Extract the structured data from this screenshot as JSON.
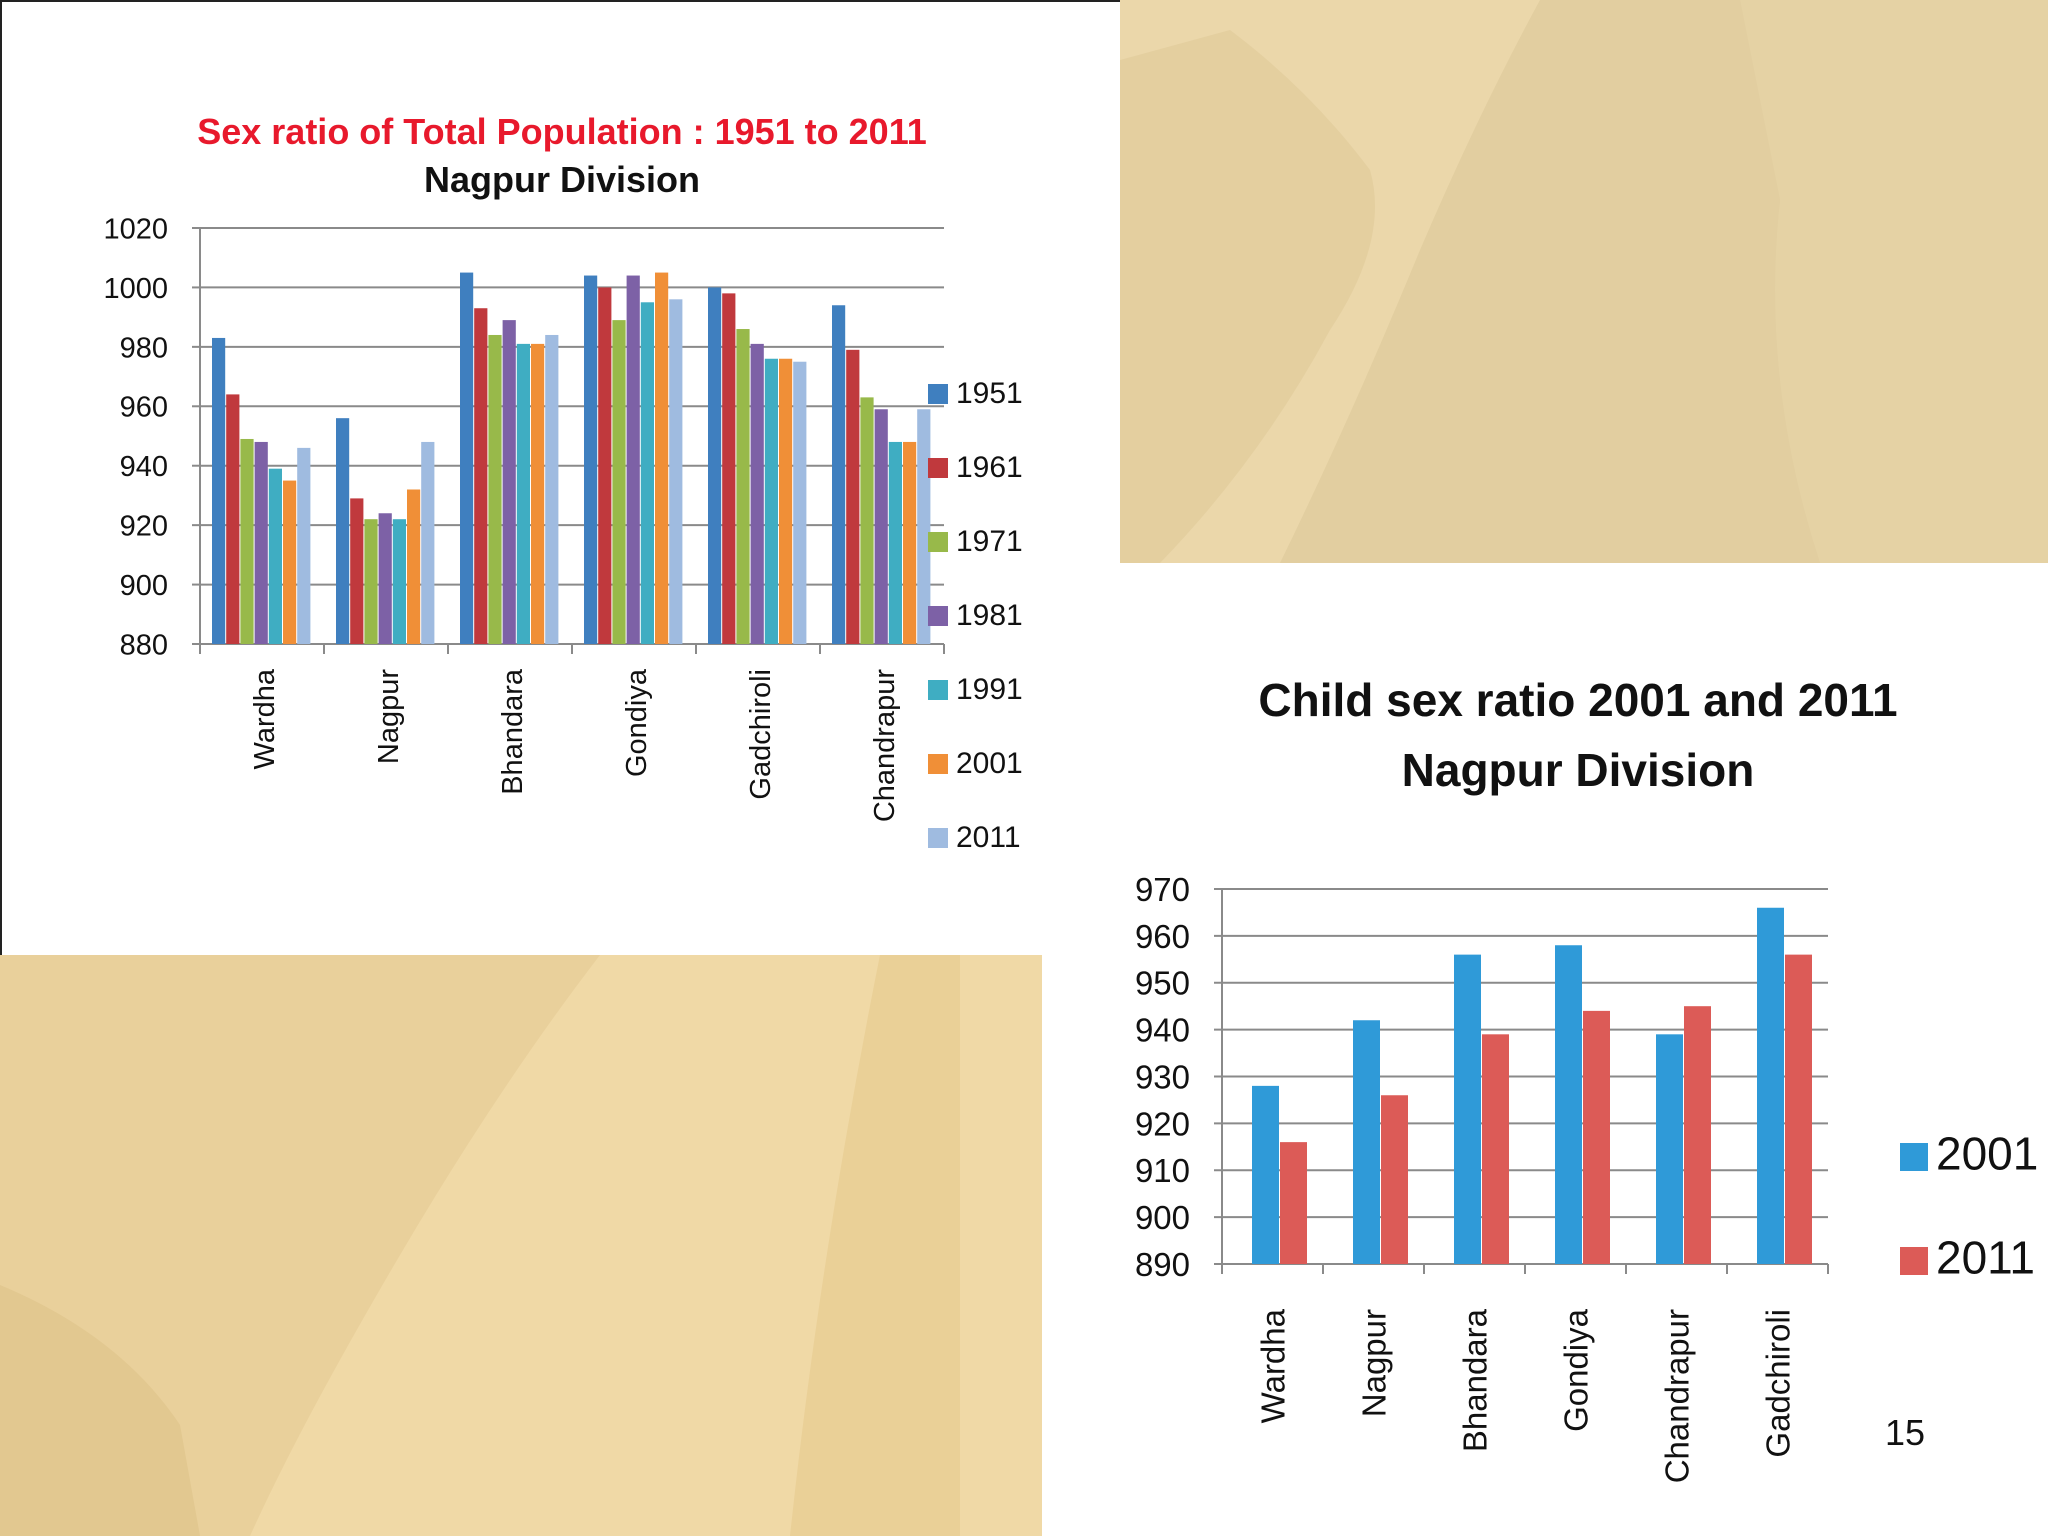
{
  "colors": {
    "deco_top_right": "#e2cea0",
    "deco_bottom_left": "#f0d9a6"
  },
  "chart_data": [
    {
      "type": "bar",
      "title": "Sex ratio of Total Population :  1951 to 2011",
      "subtitle": "Nagpur Division",
      "title_color": "#e8192c",
      "categories": [
        "Wardha",
        "Nagpur",
        "Bhandara",
        "Gondiya",
        "Gadchiroli",
        "Chandrapur"
      ],
      "series": [
        {
          "name": "1951",
          "color": "#3f7fbf",
          "values": [
            983,
            956,
            1005,
            1004,
            1000,
            994
          ]
        },
        {
          "name": "1961",
          "color": "#c0393d",
          "values": [
            964,
            929,
            993,
            1000,
            998,
            979
          ]
        },
        {
          "name": "1971",
          "color": "#98b94a",
          "values": [
            949,
            922,
            984,
            989,
            986,
            963
          ]
        },
        {
          "name": "1981",
          "color": "#7d61a6",
          "values": [
            948,
            924,
            989,
            1004,
            981,
            959
          ]
        },
        {
          "name": "1991",
          "color": "#3fadc2",
          "values": [
            939,
            922,
            981,
            995,
            976,
            948
          ]
        },
        {
          "name": "2001",
          "color": "#f08f37",
          "values": [
            935,
            932,
            981,
            1005,
            976,
            948
          ]
        },
        {
          "name": "2011",
          "color": "#9fbbe0",
          "values": [
            946,
            948,
            984,
            996,
            975,
            959
          ]
        }
      ],
      "ylim": [
        880,
        1020
      ],
      "yticks": [
        "880",
        "900",
        "920",
        "940",
        "960",
        "980",
        "1000",
        "1020"
      ],
      "grid": true,
      "legend": "right",
      "xlabel": "",
      "ylabel": ""
    },
    {
      "type": "bar",
      "title": "Child sex ratio 2001 and 2011",
      "subtitle": "Nagpur Division",
      "title_color": "#111111",
      "categories": [
        "Wardha",
        "Nagpur",
        "Bhandara",
        "Gondiya",
        "Chandrapur",
        "Gadchiroli"
      ],
      "series": [
        {
          "name": "2001",
          "color": "#2f9ad8",
          "values": [
            928,
            942,
            956,
            958,
            939,
            966
          ]
        },
        {
          "name": "2011",
          "color": "#dc5b57",
          "values": [
            916,
            926,
            939,
            944,
            945,
            956
          ]
        }
      ],
      "ylim": [
        890,
        970
      ],
      "yticks": [
        "890",
        "900",
        "910",
        "920",
        "930",
        "940",
        "950",
        "960",
        "970"
      ],
      "grid": true,
      "legend": "right",
      "xlabel": "",
      "ylabel": ""
    }
  ],
  "page_number": "15"
}
